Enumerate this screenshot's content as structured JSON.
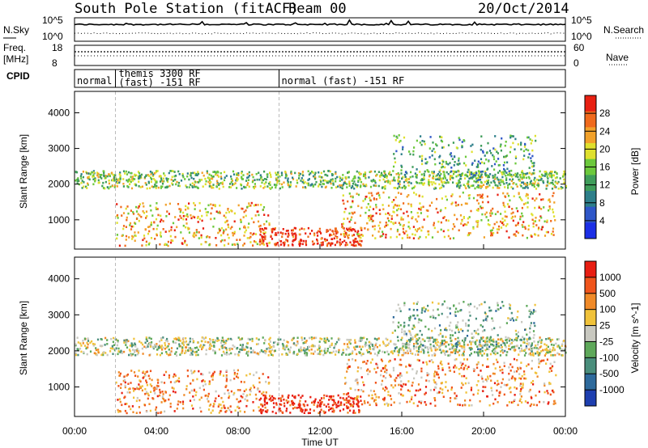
{
  "header": {
    "station": "South Pole Station (fitACF)",
    "beam": "Beam 00",
    "date": "20/Oct/2014"
  },
  "side_labels": {
    "nsky": "N.Sky",
    "freq": "Freq.",
    "mhz": "[MHz]",
    "cpid": "CPID",
    "nsearch": "N.Search",
    "nave": "Nave"
  },
  "nsky_axis": {
    "top": "10^5",
    "bottom": "10^0"
  },
  "freq_axis": {
    "top": "18",
    "bottom": "8"
  },
  "nave_axis": {
    "top": "60",
    "bottom": "0"
  },
  "cpid_segments": [
    {
      "label": "normal",
      "start_h": 0.0,
      "end_h": 2.0
    },
    {
      "label": "themis 3300 RF",
      "label2": "(fast) -151 RF",
      "start_h": 2.0,
      "end_h": 10.0
    },
    {
      "label": "normal (fast) -151 RF",
      "start_h": 10.0,
      "end_h": 24.0
    }
  ],
  "colors": {
    "power_scale": [
      "#1c2fe6",
      "#2f57c8",
      "#2e7f8a",
      "#3f9d5a",
      "#6cc93c",
      "#dfe02e",
      "#f2a12a",
      "#f06a1c",
      "#e82012"
    ],
    "velocity_scale": [
      "#1e3fb0",
      "#2e6a9c",
      "#4a8e7c",
      "#5ea85a",
      "#c8c8c0",
      "#f0c23a",
      "#f08a28",
      "#f0551c",
      "#e81e12"
    ]
  },
  "chart_data": [
    {
      "type": "heatmap",
      "title": "Power",
      "xlabel": "",
      "ylabel": "Slant Range [km]",
      "colorbar_label": "Power [dB]",
      "colorbar_ticks": [
        "4",
        "8",
        "12",
        "16",
        "20",
        "24",
        "28"
      ],
      "xlim_hours": [
        0,
        24
      ],
      "ylim_km": [
        180,
        4600
      ],
      "yticks": [
        "1000",
        "2000",
        "3000",
        "4000"
      ],
      "scatter_regions": [
        {
          "t0": 0.0,
          "t1": 24.0,
          "r0": 1900,
          "r1": 2400,
          "level": 4
        },
        {
          "t0": 2.0,
          "t1": 9.5,
          "r0": 300,
          "r1": 1500,
          "level": 6
        },
        {
          "t0": 9.0,
          "t1": 14.0,
          "r0": 300,
          "r1": 800,
          "level": 8
        },
        {
          "t0": 13.0,
          "t1": 23.5,
          "r0": 500,
          "r1": 1800,
          "level": 6
        },
        {
          "t0": 15.5,
          "t1": 22.5,
          "r0": 2000,
          "r1": 3400,
          "level": 3
        }
      ]
    },
    {
      "type": "heatmap",
      "title": "Velocity",
      "xlabel": "Time UT",
      "ylabel": "Slant Range [km]",
      "colorbar_label": "Velocity [m s^-1]",
      "colorbar_ticks": [
        "1000",
        "500",
        "100",
        "25",
        "-25",
        "-100",
        "-500",
        "-1000"
      ],
      "xlim_hours": [
        0,
        24
      ],
      "ylim_km": [
        180,
        4600
      ],
      "yticks": [
        "1000",
        "2000",
        "3000",
        "4000"
      ],
      "xticks": [
        "00:00",
        "04:00",
        "08:00",
        "12:00",
        "16:00",
        "20:00",
        "00:00"
      ]
    }
  ]
}
